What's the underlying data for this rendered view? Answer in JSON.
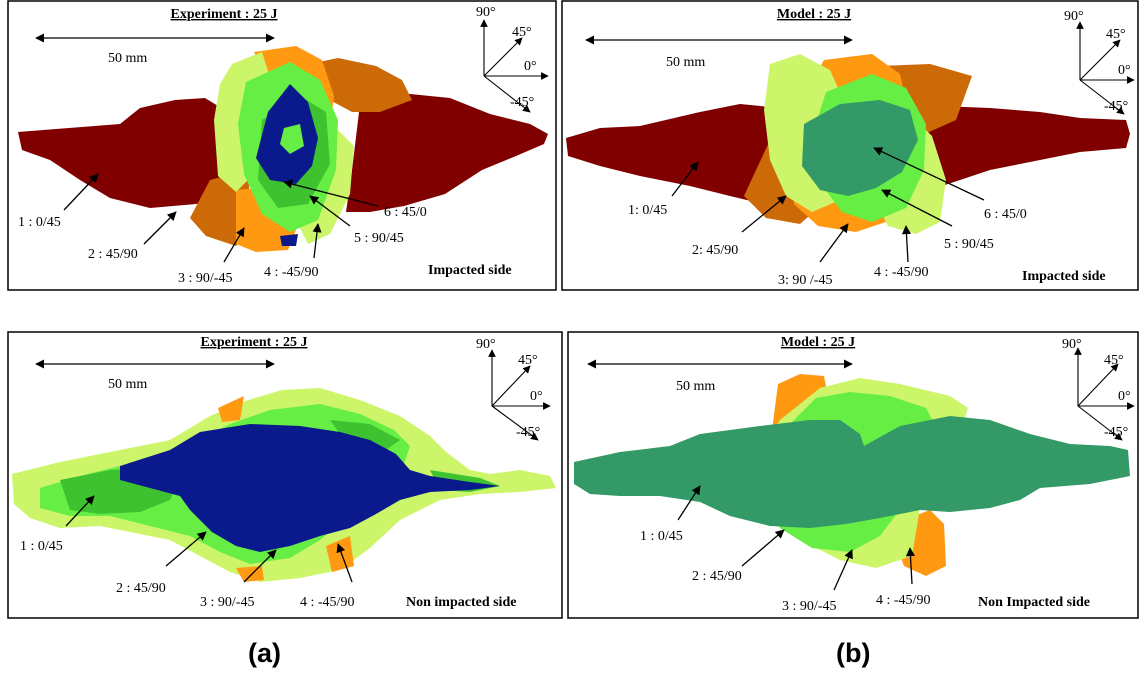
{
  "colors": {
    "ply_0_45": "#800000",
    "ply_45_90": "#cc6a08",
    "ply_90_m45": "#ff9912",
    "ply_m45_90": "#ccf56a",
    "ply_90_45": "#66ee44",
    "ply_45_0": "#339966",
    "experiment_core": "#0a1a8c",
    "experiment_mid_green": "#3fc230",
    "frame": "#000000"
  },
  "panels": [
    {
      "id": "exp-impacted",
      "title": "Experiment : 25 J",
      "scale": "50 mm",
      "side_label": "Impacted side",
      "axes": {
        "a90": "90°",
        "a45": "45°",
        "a0": "0°",
        "am45": "-45°"
      },
      "labels": [
        "1 : 0/45",
        "2 : 45/90",
        "3 : 90/-45",
        "4 : -45/90",
        "5 : 90/45",
        "6 : 45/0"
      ]
    },
    {
      "id": "model-impacted",
      "title": "Model : 25 J",
      "scale": "50 mm",
      "side_label": "Impacted side",
      "axes": {
        "a90": "90°",
        "a45": "45°",
        "a0": "0°",
        "am45": "-45°"
      },
      "labels": [
        "1: 0/45",
        "2: 45/90",
        "3: 90 /-45",
        "4 : -45/90",
        "5 : 90/45",
        "6 : 45/0"
      ]
    },
    {
      "id": "exp-non-impacted",
      "title": "Experiment : 25 J",
      "scale": "50 mm",
      "side_label": "Non impacted side",
      "axes": {
        "a90": "90°",
        "a45": "45°",
        "a0": "0°",
        "am45": "-45°"
      },
      "labels": [
        "1 : 0/45",
        "2 : 45/90",
        "3 : 90/-45",
        "4 : -45/90"
      ]
    },
    {
      "id": "model-non-impacted",
      "title": "Model : 25 J",
      "scale": "50 mm",
      "side_label": "Non Impacted side",
      "axes": {
        "a90": "90°",
        "a45": "45°",
        "a0": "0°",
        "am45": "-45°"
      },
      "labels": [
        "1 : 0/45",
        "2 : 45/90",
        "3 : 90/-45",
        "4 : -45/90"
      ]
    }
  ],
  "captions": {
    "a": "(a)",
    "b": "(b)"
  }
}
